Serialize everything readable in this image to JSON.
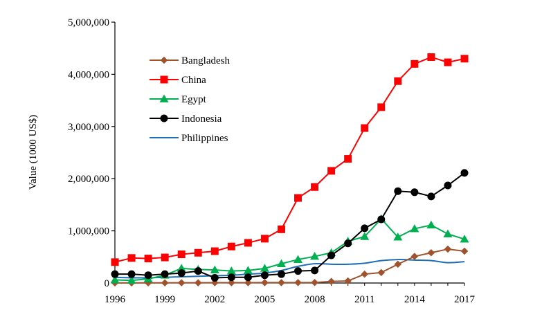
{
  "chart_data": {
    "type": "line",
    "title": "",
    "xlabel": "",
    "ylabel": "Value (1000 US$)",
    "x": [
      1996,
      1997,
      1998,
      1999,
      2000,
      2001,
      2002,
      2003,
      2004,
      2005,
      2006,
      2007,
      2008,
      2009,
      2010,
      2011,
      2012,
      2013,
      2014,
      2015,
      2016,
      2017
    ],
    "xticks": [
      "1996",
      "1999",
      "2002",
      "2005",
      "2008",
      "2011",
      "2014",
      "2017"
    ],
    "yticks": [
      "0",
      "1,000,000",
      "2,000,000",
      "3,000,000",
      "4,000,000",
      "5,000,000"
    ],
    "xlim": [
      1996,
      2017
    ],
    "ylim": [
      0,
      5000000
    ],
    "grid": false,
    "legend_position": "top-left",
    "series": [
      {
        "name": "Bangladesh",
        "color": "#A0522D",
        "marker": "diamond",
        "values": [
          2000,
          3000,
          3000,
          4000,
          5000,
          5000,
          6000,
          6000,
          7000,
          8000,
          8000,
          9000,
          10000,
          30000,
          40000,
          170000,
          200000,
          360000,
          510000,
          580000,
          650000,
          610000
        ]
      },
      {
        "name": "China",
        "color": "#FF0000",
        "marker": "square",
        "values": [
          400000,
          480000,
          470000,
          490000,
          550000,
          580000,
          610000,
          700000,
          770000,
          850000,
          1030000,
          1630000,
          1840000,
          2150000,
          2380000,
          2970000,
          3370000,
          3870000,
          4200000,
          4330000,
          4230000,
          4300000
        ]
      },
      {
        "name": "Egypt",
        "color": "#00B050",
        "marker": "triangle",
        "values": [
          60000,
          50000,
          80000,
          150000,
          280000,
          260000,
          250000,
          230000,
          240000,
          280000,
          370000,
          450000,
          510000,
          580000,
          800000,
          890000,
          1230000,
          880000,
          1040000,
          1110000,
          940000,
          840000
        ]
      },
      {
        "name": "Indonesia",
        "color": "#000000",
        "marker": "circle",
        "values": [
          170000,
          170000,
          150000,
          170000,
          190000,
          230000,
          100000,
          110000,
          110000,
          150000,
          170000,
          230000,
          240000,
          530000,
          760000,
          1050000,
          1220000,
          1760000,
          1740000,
          1660000,
          1870000,
          2110000
        ]
      },
      {
        "name": "Philippines",
        "color": "#1F6DB4",
        "marker": "none",
        "values": [
          110000,
          100000,
          100000,
          110000,
          120000,
          130000,
          140000,
          150000,
          170000,
          190000,
          240000,
          320000,
          370000,
          360000,
          360000,
          380000,
          430000,
          450000,
          440000,
          430000,
          390000,
          410000
        ]
      }
    ]
  }
}
